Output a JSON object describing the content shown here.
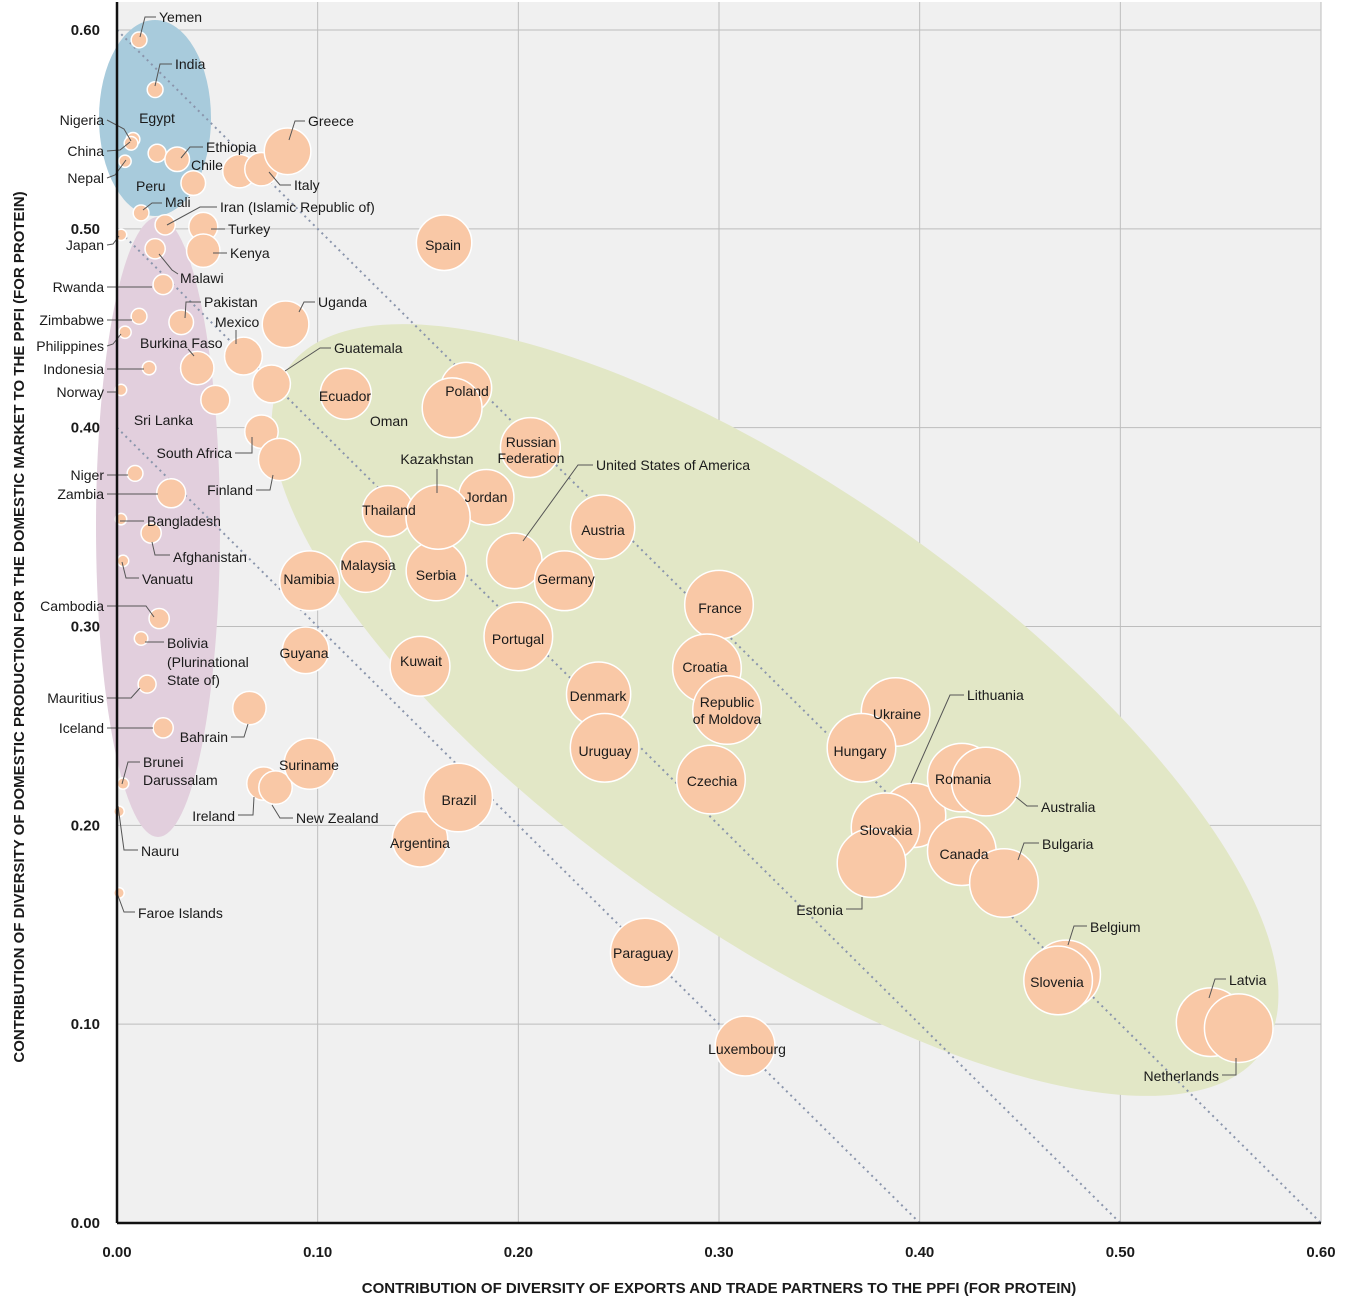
{
  "chart_data": {
    "type": "scatter",
    "title": "",
    "xlabel": "CONTRIBUTION OF DIVERSITY OF EXPORTS AND TRADE PARTNERS TO THE PPFI (FOR PROTEIN)",
    "ylabel": "CONTRIBUTION OF DIVERSITY OF DOMESTIC PRODUCTION FOR THE DOMESTIC MARKET TO THE PPFI (FOR PROTEIN)",
    "xlim": [
      0,
      0.6
    ],
    "ylim": [
      0,
      0.6
    ],
    "x_ticks": [
      "0.00",
      "0.10",
      "0.20",
      "0.30",
      "0.40",
      "0.50",
      "0.60"
    ],
    "y_ticks": [
      "0.00",
      "0.10",
      "0.20",
      "0.30",
      "0.40",
      "0.50",
      "0.60"
    ],
    "grid": true,
    "colors": {
      "background": "#f0f0f0",
      "grid": "#bdbdbd",
      "bubble": "#f9c8a6",
      "bubble_stroke": "#ffffff",
      "group_blue": "#a8cbdc",
      "group_purple": "#e2cfdd",
      "group_green": "#e2e7c6",
      "diagonal": "#8a95ac"
    },
    "points": [
      {
        "name": "Yemen",
        "x": 0.011,
        "y": 0.595,
        "s": 2
      },
      {
        "name": "India",
        "x": 0.019,
        "y": 0.57,
        "s": 2
      },
      {
        "name": "Nigeria",
        "x": 0.008,
        "y": 0.545,
        "s": 1.5
      },
      {
        "name": "Egypt",
        "x": 0.02,
        "y": 0.538,
        "s": 2.5
      },
      {
        "name": "China",
        "x": 0.007,
        "y": 0.543,
        "s": 1.5
      },
      {
        "name": "Nepal",
        "x": 0.004,
        "y": 0.534,
        "s": 1.2
      },
      {
        "name": "Ethiopia",
        "x": 0.03,
        "y": 0.535,
        "s": 4
      },
      {
        "name": "Greece",
        "x": 0.085,
        "y": 0.539,
        "s": 9
      },
      {
        "name": "Chile",
        "x": 0.061,
        "y": 0.529,
        "s": 6
      },
      {
        "name": "Italy",
        "x": 0.072,
        "y": 0.53,
        "s": 6
      },
      {
        "name": "Peru",
        "x": 0.038,
        "y": 0.523,
        "s": 4
      },
      {
        "name": "Mali",
        "x": 0.012,
        "y": 0.508,
        "s": 2
      },
      {
        "name": "Iran (Islamic Republic of)",
        "x": 0.024,
        "y": 0.502,
        "s": 3
      },
      {
        "name": "Turkey",
        "x": 0.043,
        "y": 0.501,
        "s": 5
      },
      {
        "name": "Japan",
        "x": 0.002,
        "y": 0.497,
        "s": 1
      },
      {
        "name": "Spain",
        "x": 0.163,
        "y": 0.493,
        "s": 11
      },
      {
        "name": "Kenya",
        "x": 0.043,
        "y": 0.489,
        "s": 6
      },
      {
        "name": "Malawi",
        "x": 0.019,
        "y": 0.49,
        "s": 3
      },
      {
        "name": "Rwanda",
        "x": 0.023,
        "y": 0.472,
        "s": 3
      },
      {
        "name": "Zimbabwe",
        "x": 0.011,
        "y": 0.456,
        "s": 2
      },
      {
        "name": "Pakistan",
        "x": 0.032,
        "y": 0.453,
        "s": 4
      },
      {
        "name": "Uganda",
        "x": 0.084,
        "y": 0.452,
        "s": 9
      },
      {
        "name": "Philippines",
        "x": 0.004,
        "y": 0.448,
        "s": 1.2
      },
      {
        "name": "Mexico",
        "x": 0.063,
        "y": 0.436,
        "s": 7
      },
      {
        "name": "Burkina Faso",
        "x": 0.04,
        "y": 0.43,
        "s": 6
      },
      {
        "name": "Indonesia",
        "x": 0.016,
        "y": 0.43,
        "s": 1.5
      },
      {
        "name": "Guatemala",
        "x": 0.077,
        "y": 0.422,
        "s": 7
      },
      {
        "name": "Norway",
        "x": 0.002,
        "y": 0.419,
        "s": 1
      },
      {
        "name": "Ecuador",
        "x": 0.114,
        "y": 0.417,
        "s": 10
      },
      {
        "name": "Poland",
        "x": 0.174,
        "y": 0.42,
        "s": 10
      },
      {
        "name": "Oman",
        "x": 0.167,
        "y": 0.41,
        "s": 12
      },
      {
        "name": "Sri Lanka",
        "x": 0.049,
        "y": 0.414,
        "s": 5
      },
      {
        "name": "Russian Federation",
        "x": 0.206,
        "y": 0.39,
        "s": 12
      },
      {
        "name": "South Africa",
        "x": 0.072,
        "y": 0.398,
        "s": 6
      },
      {
        "name": "Finland",
        "x": 0.081,
        "y": 0.384,
        "s": 8
      },
      {
        "name": "Niger",
        "x": 0.009,
        "y": 0.377,
        "s": 2
      },
      {
        "name": "Kazakhstan",
        "x": 0.16,
        "y": 0.355,
        "s": 13
      },
      {
        "name": "Jordan",
        "x": 0.184,
        "y": 0.365,
        "s": 11
      },
      {
        "name": "Zambia",
        "x": 0.027,
        "y": 0.367,
        "s": 5
      },
      {
        "name": "Thailand",
        "x": 0.135,
        "y": 0.358,
        "s": 10
      },
      {
        "name": "Austria",
        "x": 0.242,
        "y": 0.35,
        "s": 13
      },
      {
        "name": "Bangladesh",
        "x": 0.002,
        "y": 0.354,
        "s": 1
      },
      {
        "name": "Afghanistan",
        "x": 0.017,
        "y": 0.347,
        "s": 3
      },
      {
        "name": "United States of America",
        "x": 0.198,
        "y": 0.333,
        "s": 11
      },
      {
        "name": "Vanuatu",
        "x": 0.003,
        "y": 0.333,
        "s": 1
      },
      {
        "name": "Malaysia",
        "x": 0.124,
        "y": 0.33,
        "s": 10
      },
      {
        "name": "Serbia",
        "x": 0.159,
        "y": 0.328,
        "s": 12
      },
      {
        "name": "Namibia",
        "x": 0.096,
        "y": 0.323,
        "s": 12
      },
      {
        "name": "Germany",
        "x": 0.223,
        "y": 0.323,
        "s": 12
      },
      {
        "name": "France",
        "x": 0.3,
        "y": 0.311,
        "s": 14
      },
      {
        "name": "Cambodia",
        "x": 0.021,
        "y": 0.304,
        "s": 3
      },
      {
        "name": "Bolivia (Plurinational State of)",
        "x": 0.012,
        "y": 0.294,
        "s": 1.5
      },
      {
        "name": "Portugal",
        "x": 0.2,
        "y": 0.295,
        "s": 14
      },
      {
        "name": "Guyana",
        "x": 0.094,
        "y": 0.288,
        "s": 9
      },
      {
        "name": "Croatia",
        "x": 0.294,
        "y": 0.279,
        "s": 14
      },
      {
        "name": "Kuwait",
        "x": 0.151,
        "y": 0.28,
        "s": 12
      },
      {
        "name": "Mauritius",
        "x": 0.015,
        "y": 0.271,
        "s": 2.5
      },
      {
        "name": "Bahrain",
        "x": 0.066,
        "y": 0.259,
        "s": 6
      },
      {
        "name": "Denmark",
        "x": 0.24,
        "y": 0.266,
        "s": 13
      },
      {
        "name": "Lithuania",
        "x": 0.397,
        "y": 0.205,
        "s": 13
      },
      {
        "name": "Republic of Moldova",
        "x": 0.304,
        "y": 0.258,
        "s": 14
      },
      {
        "name": "Ukraine",
        "x": 0.388,
        "y": 0.257,
        "s": 14
      },
      {
        "name": "Iceland",
        "x": 0.023,
        "y": 0.249,
        "s": 3
      },
      {
        "name": "Uruguay",
        "x": 0.243,
        "y": 0.239,
        "s": 14
      },
      {
        "name": "Hungary",
        "x": 0.371,
        "y": 0.239,
        "s": 14
      },
      {
        "name": "Suriname",
        "x": 0.096,
        "y": 0.231,
        "s": 10
      },
      {
        "name": "Czechia",
        "x": 0.296,
        "y": 0.223,
        "s": 14
      },
      {
        "name": "Romania",
        "x": 0.421,
        "y": 0.224,
        "s": 14
      },
      {
        "name": "Australia",
        "x": 0.433,
        "y": 0.222,
        "s": 14
      },
      {
        "name": "Brunei Darussalam",
        "x": 0.003,
        "y": 0.221,
        "s": 1
      },
      {
        "name": "Ireland",
        "x": 0.073,
        "y": 0.221,
        "s": 6
      },
      {
        "name": "New Zealand",
        "x": 0.079,
        "y": 0.219,
        "s": 6
      },
      {
        "name": "Brazil",
        "x": 0.17,
        "y": 0.214,
        "s": 14
      },
      {
        "name": "Slovakia",
        "x": 0.383,
        "y": 0.199,
        "s": 14
      },
      {
        "name": "Nauru",
        "x": 0.001,
        "y": 0.207,
        "s": 0.8
      },
      {
        "name": "Argentina",
        "x": 0.151,
        "y": 0.193,
        "s": 11
      },
      {
        "name": "Canada",
        "x": 0.421,
        "y": 0.187,
        "s": 14
      },
      {
        "name": "Estonia",
        "x": 0.376,
        "y": 0.181,
        "s": 14
      },
      {
        "name": "Bulgaria",
        "x": 0.442,
        "y": 0.171,
        "s": 14
      },
      {
        "name": "Faroe Islands",
        "x": 0.001,
        "y": 0.166,
        "s": 0.8
      },
      {
        "name": "Paraguay",
        "x": 0.263,
        "y": 0.136,
        "s": 14
      },
      {
        "name": "Belgium",
        "x": 0.473,
        "y": 0.125,
        "s": 14
      },
      {
        "name": "Slovenia",
        "x": 0.469,
        "y": 0.122,
        "s": 14
      },
      {
        "name": "Latvia",
        "x": 0.545,
        "y": 0.101,
        "s": 14
      },
      {
        "name": "Netherlands",
        "x": 0.559,
        "y": 0.098,
        "s": 14
      },
      {
        "name": "Luxembourg",
        "x": 0.313,
        "y": 0.089,
        "s": 12
      }
    ]
  }
}
